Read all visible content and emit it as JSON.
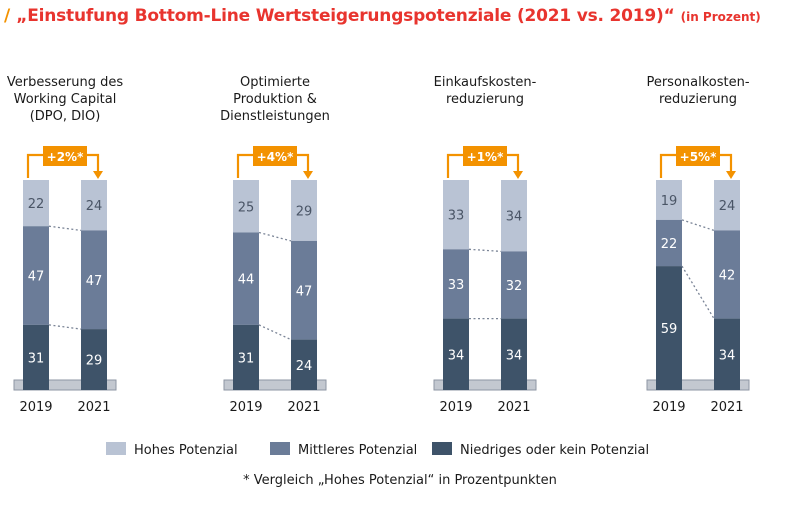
{
  "header": {
    "slash": "/",
    "title": "„Einstufung Bottom-Line Wertsteigerungspotenziale (2021 vs. 2019)“",
    "unit": "(in Prozent)"
  },
  "colors": {
    "hoch": "#b9c3d4",
    "mittel": "#6b7c98",
    "niedrig": "#3e5369",
    "accent": "#f39200",
    "title": "#e8342e",
    "base": "#c3c8d0"
  },
  "chart_data": {
    "type": "bar",
    "stacked": true,
    "ylim": [
      0,
      100
    ],
    "categories": [
      {
        "title_lines": [
          "Verbesserung des",
          "Working Capital",
          "(DPO, DIO)"
        ],
        "delta": "+2%*",
        "years": [
          "2019",
          "2021"
        ],
        "series": {
          "hoch": [
            22,
            24
          ],
          "mittel": [
            47,
            47
          ],
          "niedrig": [
            31,
            29
          ]
        }
      },
      {
        "title_lines": [
          "Optimierte",
          "Produktion &",
          "Dienstleistungen"
        ],
        "delta": "+4%*",
        "years": [
          "2019",
          "2021"
        ],
        "series": {
          "hoch": [
            25,
            29
          ],
          "mittel": [
            44,
            47
          ],
          "niedrig": [
            31,
            24
          ]
        }
      },
      {
        "title_lines": [
          "Einkaufskosten-",
          "reduzierung"
        ],
        "delta": "+1%*",
        "years": [
          "2019",
          "2021"
        ],
        "series": {
          "hoch": [
            33,
            34
          ],
          "mittel": [
            33,
            32
          ],
          "niedrig": [
            34,
            34
          ]
        }
      },
      {
        "title_lines": [
          "Personalkosten-",
          "reduzierung"
        ],
        "delta": "+5%*",
        "years": [
          "2019",
          "2021"
        ],
        "series": {
          "hoch": [
            19,
            24
          ],
          "mittel": [
            22,
            42
          ],
          "niedrig": [
            59,
            34
          ]
        }
      }
    ],
    "legend": [
      {
        "key": "hoch",
        "label": "Hohes Potenzial"
      },
      {
        "key": "mittel",
        "label": "Mittleres Potenzial"
      },
      {
        "key": "niedrig",
        "label": "Niedriges oder kein Potenzial"
      }
    ],
    "footnote": "* Vergleich „Hohes Potenzial“ in Prozentpunkten"
  }
}
